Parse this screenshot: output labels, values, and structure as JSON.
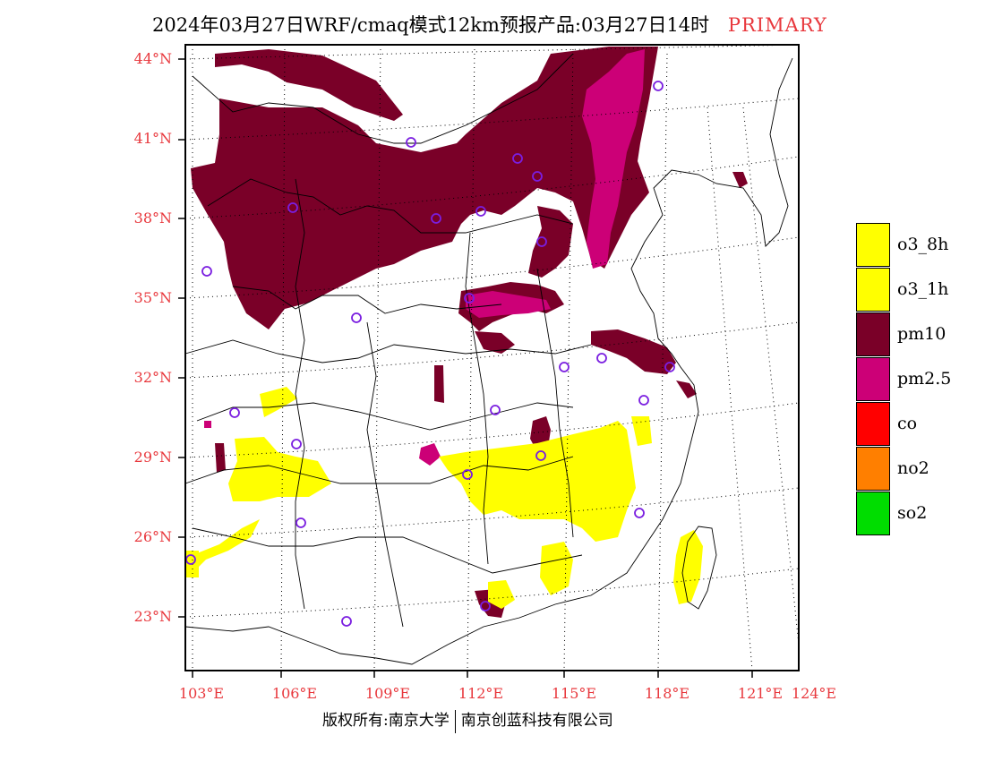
{
  "title": {
    "main": "2024年03月27日WRF/cmaq模式12km预报产品:03月27日14时",
    "tag": "PRIMARY"
  },
  "map": {
    "lat_labels": [
      "44°N",
      "41°N",
      "38°N",
      "35°N",
      "32°N",
      "29°N",
      "26°N",
      "23°N"
    ],
    "lon_labels": [
      "103°E",
      "106°E",
      "109°E",
      "112°E",
      "115°E",
      "118°E",
      "121°E",
      "124°E"
    ],
    "layers": [
      {
        "name": "pm10",
        "color": "#7a0028"
      },
      {
        "name": "pm2.5",
        "color": "#cc0077"
      },
      {
        "name": "o3",
        "color": "#ffff00"
      }
    ],
    "station_marker_color": "#7a1ee0"
  },
  "legend": {
    "items": [
      {
        "label": "o3_8h",
        "color": "#ffff00"
      },
      {
        "label": "o3_1h",
        "color": "#ffff00"
      },
      {
        "label": "pm10",
        "color": "#7a0028"
      },
      {
        "label": "pm2.5",
        "color": "#cc0077"
      },
      {
        "label": "co",
        "color": "#ff0000"
      },
      {
        "label": "no2",
        "color": "#ff7f00"
      },
      {
        "label": "so2",
        "color": "#00dd00"
      }
    ]
  },
  "footer": {
    "left": "版权所有:南京大学",
    "right": "南京创蓝科技有限公司"
  }
}
